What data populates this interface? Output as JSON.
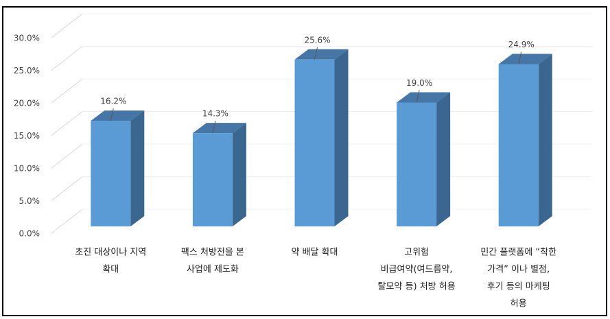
{
  "chart_data": {
    "type": "bar3d",
    "categories": [
      [
        "초진 대상이나 지역",
        "확대"
      ],
      [
        "팩스 처방전을 본",
        "사업에 제도화"
      ],
      [
        "약 배달 확대"
      ],
      [
        "고위험",
        "비급여약(여드름약,",
        "탈모약 등) 처방 허용"
      ],
      [
        "민간 플랫폼에 “착한",
        "가격” 이나 별점,",
        "후기 등의 마케팅",
        "허용"
      ]
    ],
    "values": [
      16.2,
      14.3,
      25.6,
      19.0,
      24.9
    ],
    "value_labels": [
      "16.2%",
      "14.3%",
      "25.6%",
      "19.0%",
      "24.9%"
    ],
    "color": "#5b9bd5",
    "ylim": [
      0,
      30
    ],
    "yticks": [
      {
        "value": 0,
        "label": "0.0%"
      },
      {
        "value": 5,
        "label": "5.0%"
      },
      {
        "value": 10,
        "label": "10.0%"
      },
      {
        "value": 15,
        "label": "15.0%"
      },
      {
        "value": 20,
        "label": "20.0%"
      },
      {
        "value": 25,
        "label": "25.0%"
      },
      {
        "value": 30,
        "label": "30.0%"
      }
    ],
    "grid": true
  }
}
